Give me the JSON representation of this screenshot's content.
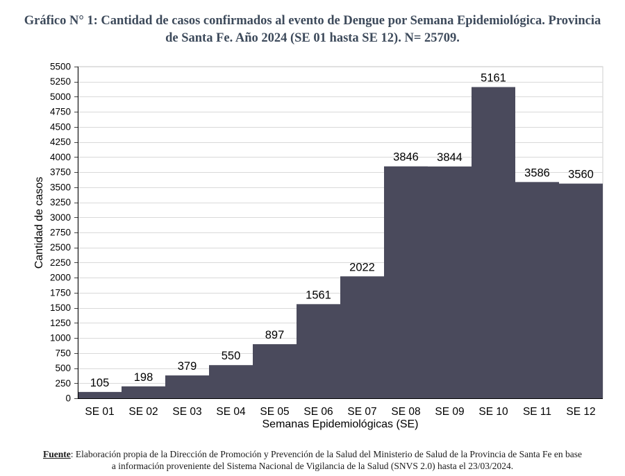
{
  "chart_data": {
    "type": "bar",
    "title": "Gráfico N° 1: Cantidad de casos confirmados al evento de Dengue por Semana Epidemiológica. Provincia\nde Santa Fe. Año 2024 (SE 01 hasta SE 12). N= 25709.",
    "categories": [
      "SE 01",
      "SE 02",
      "SE 03",
      "SE 04",
      "SE 05",
      "SE 06",
      "SE 07",
      "SE 08",
      "SE 09",
      "SE 10",
      "SE 11",
      "SE 12"
    ],
    "values": [
      105,
      198,
      379,
      550,
      897,
      1561,
      2022,
      3846,
      3844,
      5161,
      3586,
      3560
    ],
    "xlabel": "Semanas Epidemiológicas (SE)",
    "ylabel": "Cantidad de casos",
    "ylim": [
      0,
      5500
    ],
    "yticks": [
      0,
      250,
      500,
      750,
      1000,
      1250,
      1500,
      1750,
      2000,
      2250,
      2500,
      2750,
      3000,
      3250,
      3500,
      3750,
      4000,
      4250,
      4500,
      4750,
      5000,
      5250,
      5500
    ],
    "grid": true,
    "legend": "none",
    "data_labels": true
  },
  "colors": {
    "bar": "#4a4a5c",
    "title": "#3d4a5b"
  },
  "source": {
    "label": "Fuente",
    "text": ": Elaboración propia de la Dirección de Promoción y Prevención de la Salud del Ministerio de Salud de la Provincia de Santa Fe en base\na información proveniente del Sistema Nacional de Vigilancia de la Salud (SNVS 2.0) hasta el 23/03/2024."
  }
}
